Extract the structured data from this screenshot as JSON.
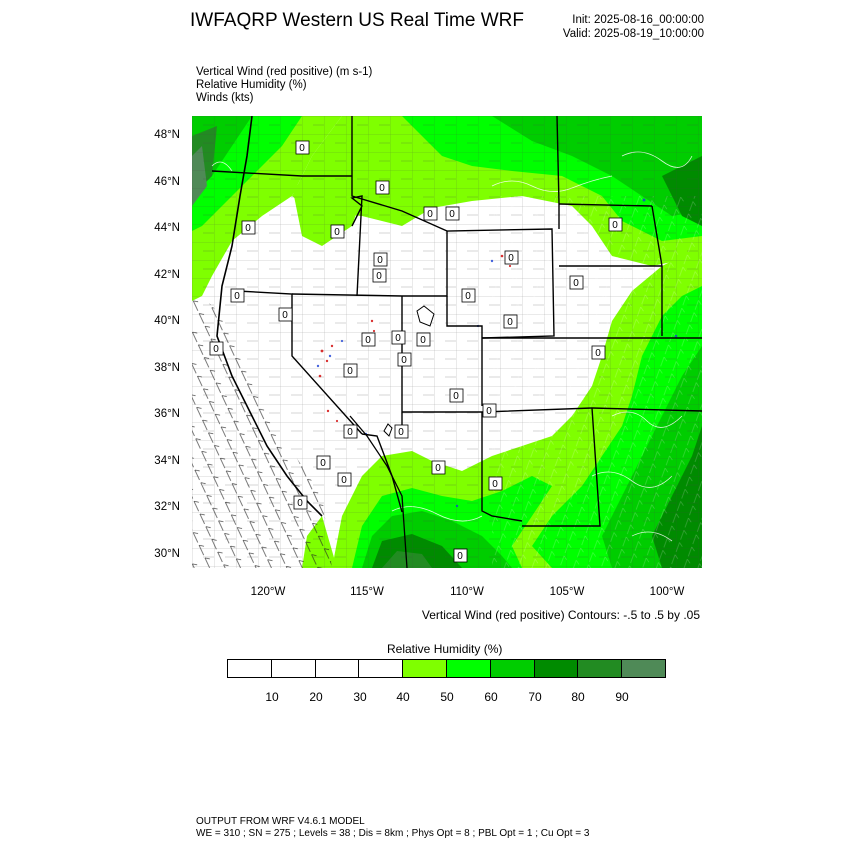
{
  "header": {
    "title": "IWFAQRP Western US Real Time WRF",
    "init": "Init: 2025-08-16_00:00:00",
    "valid": "Valid: 2025-08-19_10:00:00"
  },
  "fields": [
    "Vertical Wind (red positive)   (m s-1)",
    "Relative Humidity   (%)",
    "Winds   (kts)"
  ],
  "axes": {
    "lat_labels": [
      "48°N",
      "46°N",
      "44°N",
      "42°N",
      "40°N",
      "38°N",
      "36°N",
      "34°N",
      "32°N",
      "30°N"
    ],
    "lon_labels": [
      "120°W",
      "115°W",
      "110°W",
      "105°W",
      "100°W"
    ]
  },
  "map": {
    "contour_label": "0",
    "contour_note": "Vertical Wind (red positive) Contours: -.5 to .5 by .05"
  },
  "colorbar": {
    "title": "Relative Humidity   (%)",
    "labels": [
      "10",
      "20",
      "30",
      "40",
      "50",
      "60",
      "70",
      "80",
      "90"
    ],
    "colors": [
      "#ffffff",
      "#ffffff",
      "#ffffff",
      "#ffffff",
      "#7fff00",
      "#00ff00",
      "#00cd00",
      "#008b00",
      "#228b22",
      "#4f8a57"
    ]
  },
  "footer": {
    "line1": "OUTPUT FROM WRF V4.6.1 MODEL",
    "line2": "WE = 310 ; SN = 275 ; Levels = 38 ; Dis = 8km ; Phys Opt = 8 ; PBL Opt = 1 ; Cu Opt = 3"
  }
}
